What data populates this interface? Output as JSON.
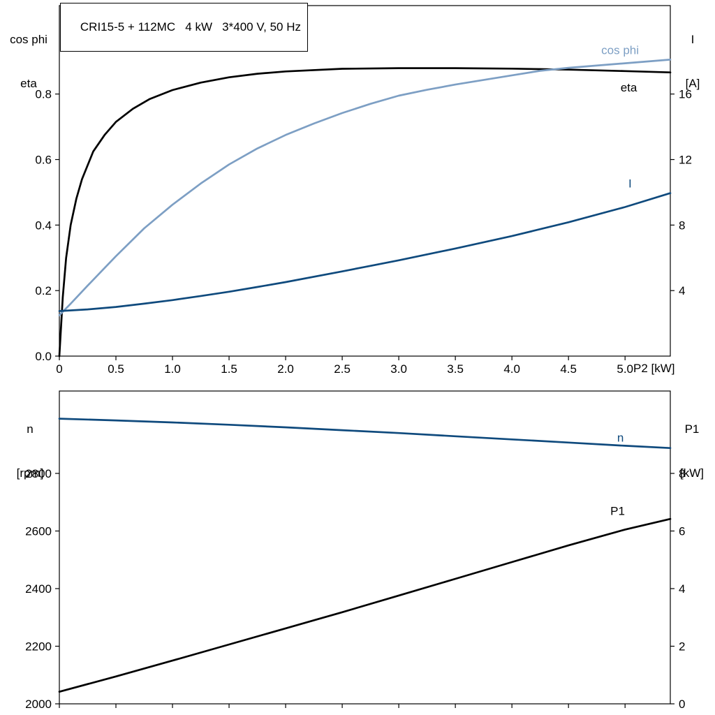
{
  "chart_data": [
    {
      "type": "line",
      "title": "CRI15-5 + 112MC   4 kW   3*400 V, 50 Hz",
      "xlabel": "P2 [kW]",
      "grid": false,
      "x_range": [
        0,
        5.4
      ],
      "x_tick_labels_visible": true,
      "x_ticks": [
        {
          "v": 0,
          "label": "0"
        },
        {
          "v": 0.5,
          "label": "0.5"
        },
        {
          "v": 1,
          "label": "1.0"
        },
        {
          "v": 1.5,
          "label": "1.5"
        },
        {
          "v": 2,
          "label": "2.0"
        },
        {
          "v": 2.5,
          "label": "2.5"
        },
        {
          "v": 3,
          "label": "3.0"
        },
        {
          "v": 3.5,
          "label": "3.5"
        },
        {
          "v": 4,
          "label": "4.0"
        },
        {
          "v": 4.5,
          "label": "4.5"
        },
        {
          "v": 5,
          "label": "5.0"
        }
      ],
      "left_axis": {
        "label_lines": [
          "cos phi",
          "eta"
        ],
        "range": [
          0,
          1.07
        ],
        "ticks": [
          {
            "v": 0,
            "label": "0.0"
          },
          {
            "v": 0.2,
            "label": "0.2"
          },
          {
            "v": 0.4,
            "label": "0.4"
          },
          {
            "v": 0.6,
            "label": "0.6"
          },
          {
            "v": 0.8,
            "label": "0.8"
          }
        ]
      },
      "right_axis": {
        "label_lines": [
          "I",
          "[A]"
        ],
        "range": [
          0,
          21.4
        ],
        "ticks": [
          {
            "v": 4,
            "label": "4"
          },
          {
            "v": 8,
            "label": "8"
          },
          {
            "v": 12,
            "label": "12"
          },
          {
            "v": 16,
            "label": "16"
          }
        ]
      },
      "series": [
        {
          "name": "eta",
          "axis": "left",
          "color": "#000000",
          "label_at": {
            "x": 4.96,
            "y": 0.82,
            "anchor": "start"
          },
          "x": [
            0,
            0.03,
            0.06,
            0.1,
            0.15,
            0.2,
            0.3,
            0.4,
            0.5,
            0.65,
            0.8,
            1.0,
            1.25,
            1.5,
            1.75,
            2.0,
            2.5,
            3.0,
            3.5,
            4.0,
            4.25,
            4.5,
            5.0,
            5.4
          ],
          "y": [
            0,
            0.18,
            0.3,
            0.4,
            0.48,
            0.54,
            0.625,
            0.675,
            0.715,
            0.755,
            0.785,
            0.812,
            0.835,
            0.851,
            0.862,
            0.869,
            0.877,
            0.879,
            0.879,
            0.8775,
            0.876,
            0.8745,
            0.87,
            0.866
          ]
        },
        {
          "name": "cos phi",
          "axis": "left",
          "color": "#7d9fc4",
          "label_at": {
            "x": 4.79,
            "y": 0.935,
            "anchor": "start"
          },
          "x": [
            0,
            0.1,
            0.25,
            0.5,
            0.75,
            1.0,
            1.25,
            1.5,
            1.75,
            2.0,
            2.25,
            2.5,
            2.75,
            3.0,
            3.25,
            3.5,
            4.0,
            4.25,
            4.5,
            5.0,
            5.4
          ],
          "y": [
            0.125,
            0.16,
            0.215,
            0.305,
            0.39,
            0.462,
            0.527,
            0.585,
            0.634,
            0.675,
            0.71,
            0.742,
            0.77,
            0.795,
            0.813,
            0.829,
            0.857,
            0.871,
            0.88,
            0.894,
            0.905
          ]
        },
        {
          "name": "I",
          "axis": "right",
          "color": "#0f4a7d",
          "label_at": {
            "x": 5.03,
            "y": 10.55,
            "anchor": "start"
          },
          "x": [
            0,
            0.25,
            0.5,
            0.75,
            1.0,
            1.25,
            1.5,
            1.75,
            2.0,
            2.5,
            3.0,
            3.5,
            4.0,
            4.5,
            5.0,
            5.4
          ],
          "y": [
            2.75,
            2.85,
            3.0,
            3.2,
            3.42,
            3.67,
            3.93,
            4.22,
            4.52,
            5.17,
            5.85,
            6.57,
            7.33,
            8.17,
            9.1,
            9.95
          ]
        }
      ]
    },
    {
      "type": "line",
      "title": "",
      "xlabel": "",
      "grid": false,
      "x_range": [
        0,
        5.4
      ],
      "x_tick_labels_visible": false,
      "x_ticks": [
        {
          "v": 0,
          "label": ""
        },
        {
          "v": 0.5,
          "label": ""
        },
        {
          "v": 1,
          "label": ""
        },
        {
          "v": 1.5,
          "label": ""
        },
        {
          "v": 2,
          "label": ""
        },
        {
          "v": 2.5,
          "label": ""
        },
        {
          "v": 3,
          "label": ""
        },
        {
          "v": 3.5,
          "label": ""
        },
        {
          "v": 4,
          "label": ""
        },
        {
          "v": 4.5,
          "label": ""
        },
        {
          "v": 5,
          "label": ""
        }
      ],
      "left_axis": {
        "label_lines": [
          "n",
          "[rpm]"
        ],
        "range": [
          2000,
          3086
        ],
        "ticks": [
          {
            "v": 2000,
            "label": "2000"
          },
          {
            "v": 2200,
            "label": "2200"
          },
          {
            "v": 2400,
            "label": "2400"
          },
          {
            "v": 2600,
            "label": "2600"
          },
          {
            "v": 2800,
            "label": "2800"
          }
        ]
      },
      "right_axis": {
        "label_lines": [
          "P1",
          "[kW]"
        ],
        "range": [
          0,
          10.86
        ],
        "ticks": [
          {
            "v": 0,
            "label": "0"
          },
          {
            "v": 2,
            "label": "2"
          },
          {
            "v": 4,
            "label": "4"
          },
          {
            "v": 6,
            "label": "6"
          },
          {
            "v": 8,
            "label": "8"
          }
        ]
      },
      "series": [
        {
          "name": "n",
          "axis": "left",
          "color": "#0f4a7d",
          "label_at": {
            "x": 4.93,
            "y": 2925,
            "anchor": "start"
          },
          "x": [
            0,
            0.5,
            1.0,
            1.5,
            2.0,
            2.5,
            3.0,
            3.5,
            4.0,
            4.5,
            5.0,
            5.4
          ],
          "y": [
            2990,
            2984,
            2977,
            2969,
            2960,
            2950,
            2940,
            2929,
            2918,
            2907,
            2896,
            2888
          ]
        },
        {
          "name": "P1",
          "axis": "right",
          "color": "#000000",
          "label_at": {
            "x": 4.87,
            "y": 6.7,
            "anchor": "start"
          },
          "x": [
            0,
            0.5,
            1.0,
            1.5,
            2.0,
            2.5,
            3.0,
            3.5,
            4.0,
            4.5,
            5.0,
            5.4
          ],
          "y": [
            0.42,
            0.95,
            1.5,
            2.06,
            2.62,
            3.18,
            3.76,
            4.34,
            4.92,
            5.5,
            6.05,
            6.42
          ]
        }
      ]
    }
  ]
}
